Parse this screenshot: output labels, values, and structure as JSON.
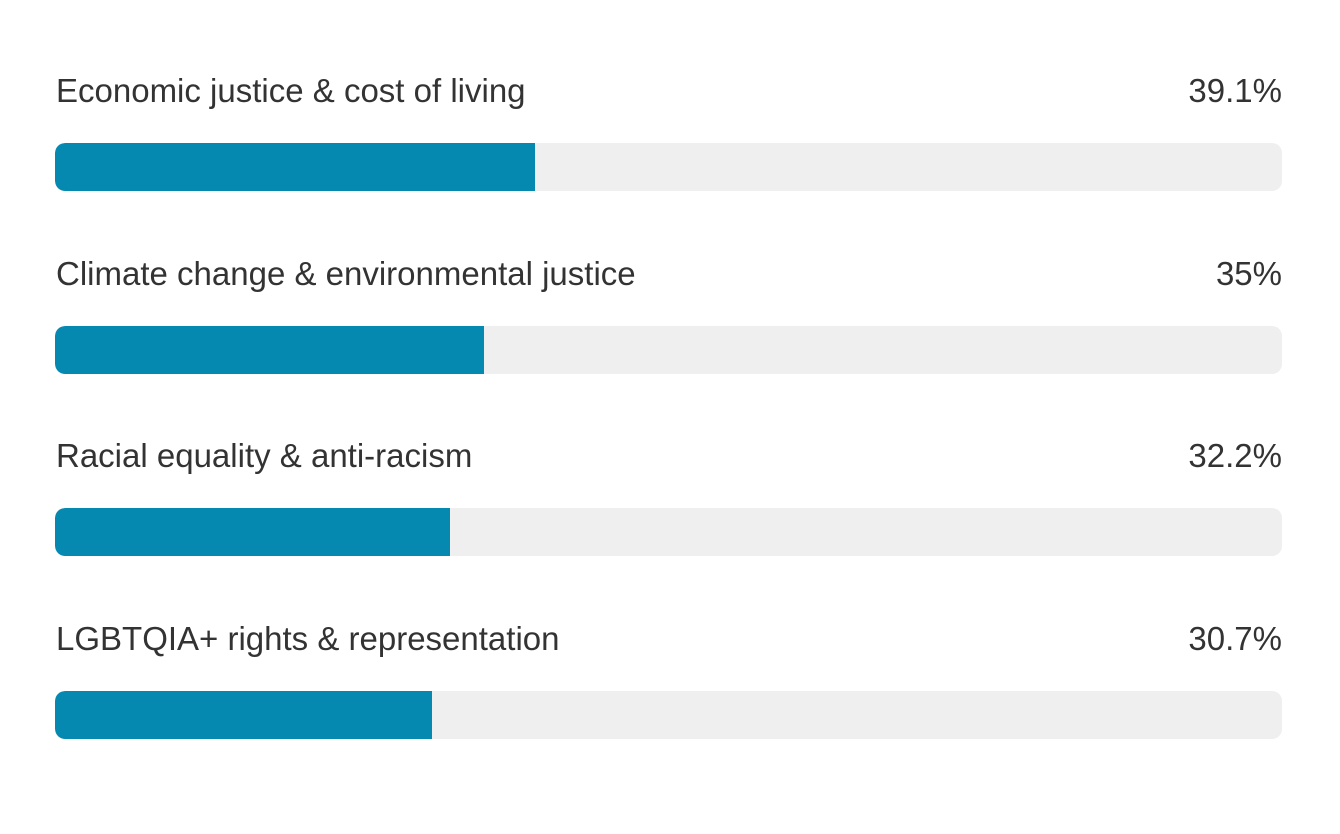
{
  "chart_data": {
    "type": "bar",
    "orientation": "horizontal",
    "scale_max": 100,
    "colors": {
      "fill": "#0589B0",
      "track": "#EFEFEF",
      "text": "#333333"
    },
    "items": [
      {
        "label": "Economic justice & cost of living",
        "value": 39.1,
        "value_label": "39.1%"
      },
      {
        "label": "Climate change & environmental justice",
        "value": 35,
        "value_label": "35%"
      },
      {
        "label": "Racial equality & anti-racism",
        "value": 32.2,
        "value_label": "32.2%"
      },
      {
        "label": "LGBTQIA+ rights & representation",
        "value": 30.7,
        "value_label": "30.7%"
      }
    ]
  }
}
